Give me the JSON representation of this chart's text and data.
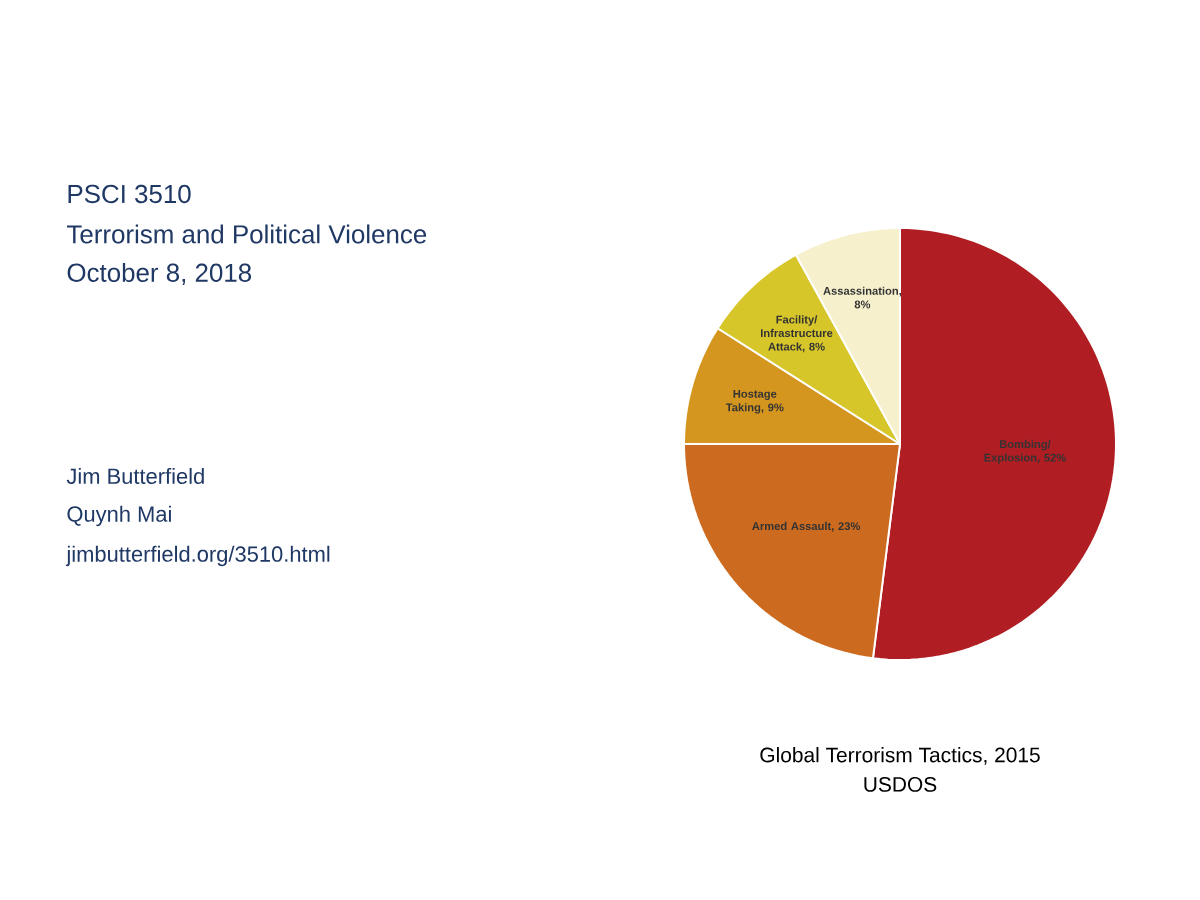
{
  "chart_data": {
    "type": "pie",
    "title": "Global Terrorism Tactics, 2015",
    "subtitle": "USDOS",
    "categories": [
      "Bombing/ Explosion, 52%",
      "Armed Assault, 23%",
      "Hostage Taking, 9%",
      "Facility/ Infrastructure Attack, 8%",
      "Assassination, 8%"
    ],
    "values": [
      52,
      23,
      9,
      8,
      8
    ],
    "colors": [
      "#b01e23",
      "#cc6a1f",
      "#d4961f",
      "#d6c62a",
      "#f6f0cc"
    ],
    "annotations": [
      "PSCI 3510",
      "Terrorism and Political Violence",
      "October 8, 2018",
      "Jim Butterfield",
      "Quynh Mai",
      "jimbutterfield.org/3510.html"
    ]
  }
}
